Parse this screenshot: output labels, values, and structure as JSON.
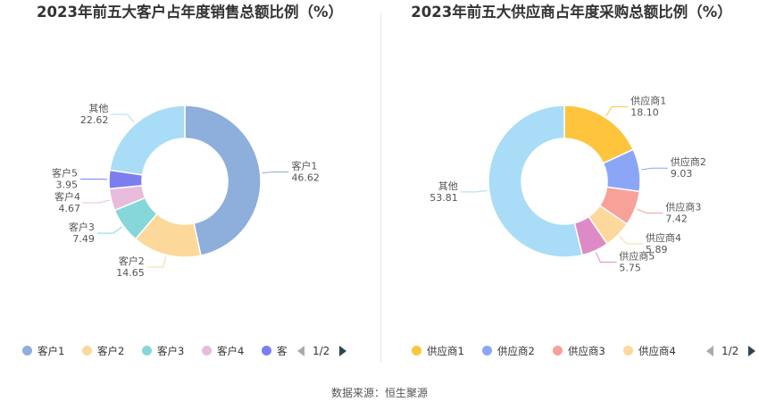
{
  "source": "数据来源：恒生聚源",
  "chart_data": [
    {
      "type": "pie",
      "title": "2023年前五大客户占年度销售总额比例（%）",
      "categories": [
        "客户1",
        "客户2",
        "客户3",
        "客户4",
        "客户5",
        "其他"
      ],
      "values": [
        46.62,
        14.65,
        7.49,
        4.67,
        3.95,
        22.62
      ],
      "value_labels": [
        "46.62",
        "14.65",
        "7.49",
        "4.67",
        "3.95",
        "22.62"
      ],
      "colors": [
        "#8eaedb",
        "#fcd99a",
        "#86d7d9",
        "#e8bbdd",
        "#7c7ef0",
        "#a9dcf7"
      ],
      "legend": {
        "placement": "bottom",
        "items": [
          "客户1",
          "客户2",
          "客户3",
          "客户4",
          "客"
        ],
        "page": "1/2"
      }
    },
    {
      "type": "pie",
      "title": "2023年前五大供应商占年度采购总额比例（%）",
      "categories": [
        "供应商1",
        "供应商2",
        "供应商3",
        "供应商4",
        "供应商5",
        "其他"
      ],
      "values": [
        18.1,
        9.03,
        7.42,
        5.89,
        5.75,
        53.81
      ],
      "value_labels": [
        "18.10",
        "9.03",
        "7.42",
        "5.89",
        "5.75",
        "53.81"
      ],
      "colors": [
        "#fec43c",
        "#8ca6f7",
        "#f8a199",
        "#fdd89d",
        "#de8ac6",
        "#a9dcf7"
      ],
      "legend": {
        "placement": "bottom",
        "items": [
          "供应商1",
          "供应商2",
          "供应商3",
          "供应商4"
        ],
        "page": "1/2"
      }
    }
  ]
}
